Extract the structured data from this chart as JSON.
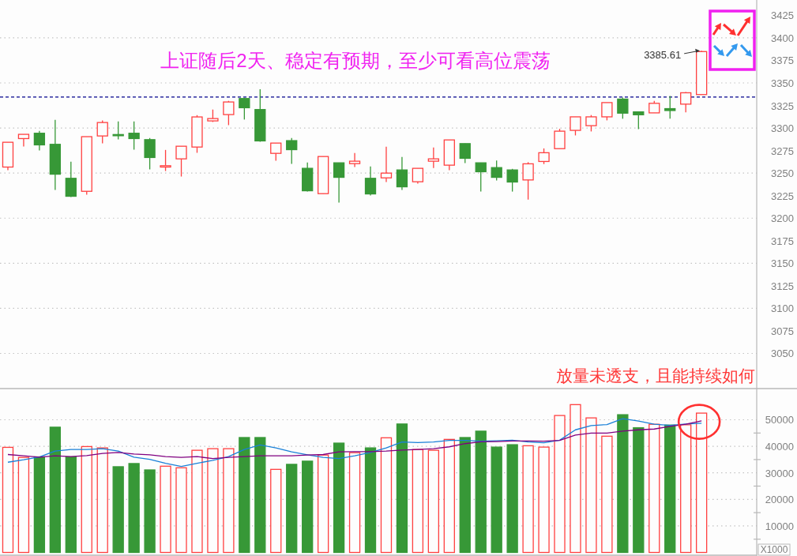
{
  "chart_data": [
    {
      "type": "candlestick",
      "title": "上证随后2天、稳定有预期，至少可看高位震荡",
      "categories": [
        null,
        null,
        null,
        null,
        null,
        null,
        null,
        null,
        null,
        null,
        null,
        null,
        null,
        null,
        null,
        null,
        null,
        null,
        null,
        null,
        null,
        null,
        null,
        null,
        null,
        null,
        null,
        null,
        null,
        null,
        null,
        null,
        null,
        null,
        null,
        null,
        null,
        null,
        null,
        null,
        null,
        null,
        null,
        null,
        null,
        null,
        null,
        null
      ],
      "ohlc": [
        [
          3256.7,
          3284.2,
          3253.2,
          3284.2
        ],
        [
          3288.3,
          3293.0,
          3279.5,
          3293.0
        ],
        [
          3294.2,
          3296.8,
          3275.1,
          3281.3
        ],
        [
          3281.9,
          3309.1,
          3231.3,
          3248.8
        ],
        [
          3244.2,
          3262.6,
          3223.4,
          3224.3
        ],
        [
          3229.8,
          3290.4,
          3226.0,
          3290.4
        ],
        [
          3291.2,
          3308.5,
          3283.0,
          3306.1
        ],
        [
          3292.1,
          3307.3,
          3287.4,
          3292.1
        ],
        [
          3294.2,
          3307.3,
          3276.0,
          3288.3
        ],
        [
          3287.1,
          3288.9,
          3254.1,
          3267.3
        ],
        [
          3256.7,
          3275.7,
          3252.3,
          3258.2
        ],
        [
          3265.8,
          3279.8,
          3246.2,
          3279.8
        ],
        [
          3278.9,
          3314.3,
          3272.5,
          3312.3
        ],
        [
          3307.9,
          3320.5,
          3306.7,
          3310.5
        ],
        [
          3314.9,
          3330.1,
          3303.2,
          3328.9
        ],
        [
          3332.7,
          3333.6,
          3309.4,
          3322.5
        ],
        [
          3320.5,
          3343.0,
          3284.8,
          3285.7
        ],
        [
          3271.9,
          3283.3,
          3263.7,
          3283.3
        ],
        [
          3286.0,
          3288.9,
          3260.2,
          3276.0
        ],
        [
          3255.3,
          3261.7,
          3229.5,
          3230.4
        ],
        [
          3227.2,
          3268.4,
          3227.2,
          3268.4
        ],
        [
          3261.4,
          3261.4,
          3217.3,
          3245.3
        ],
        [
          3260.5,
          3272.2,
          3256.7,
          3263.2
        ],
        [
          3244.2,
          3257.3,
          3225.1,
          3226.9
        ],
        [
          3244.7,
          3279.2,
          3240.1,
          3250.0
        ],
        [
          3253.5,
          3267.8,
          3231.3,
          3234.8
        ],
        [
          3240.4,
          3255.3,
          3238.3,
          3255.3
        ],
        [
          3263.2,
          3278.4,
          3255.6,
          3265.8
        ],
        [
          3258.8,
          3286.8,
          3253.2,
          3286.8
        ],
        [
          3282.7,
          3282.7,
          3261.1,
          3266.4
        ],
        [
          3261.4,
          3261.4,
          3229.5,
          3251.5
        ],
        [
          3256.1,
          3264.0,
          3241.8,
          3245.3
        ],
        [
          3253.5,
          3254.7,
          3229.5,
          3240.1
        ],
        [
          3242.4,
          3262.1,
          3220.6,
          3260.3
        ],
        [
          3262.9,
          3277.4,
          3260.0,
          3272.6
        ],
        [
          3277.1,
          3299.1,
          3277.1,
          3296.5
        ],
        [
          3297.4,
          3312.4,
          3291.8,
          3312.4
        ],
        [
          3302.6,
          3314.4,
          3296.2,
          3312.4
        ],
        [
          3312.4,
          3328.2,
          3308.5,
          3328.2
        ],
        [
          3332.1,
          3333.8,
          3310.3,
          3316.5
        ],
        [
          3317.9,
          3317.9,
          3298.8,
          3314.7
        ],
        [
          3316.8,
          3330.0,
          3316.8,
          3327.4
        ],
        [
          3321.5,
          3335.6,
          3310.3,
          3319.4
        ],
        [
          3326.5,
          3340.0,
          3317.4,
          3339.1
        ],
        [
          3337.1,
          3385.61,
          3337.1,
          3384.8
        ],
        null,
        null,
        null
      ],
      "colors": [
        "#ff4040",
        "#ff4040",
        "#379837",
        "#379837",
        "#379837",
        "#ff4040",
        "#ff4040",
        "#379837",
        "#379837",
        "#379837",
        "#ff4040",
        "#ff4040",
        "#ff4040",
        "#ff4040",
        "#ff4040",
        "#379837",
        "#379837",
        "#ff4040",
        "#379837",
        "#379837",
        "#ff4040",
        "#379837",
        "#ff4040",
        "#379837",
        "#ff4040",
        "#379837",
        "#ff4040",
        "#ff4040",
        "#ff4040",
        "#379837",
        "#379837",
        "#379837",
        "#379837",
        "#ff4040",
        "#ff4040",
        "#ff4040",
        "#ff4040",
        "#ff4040",
        "#ff4040",
        "#379837",
        "#379837",
        "#ff4040",
        "#379837",
        "#ff4040",
        "#ff4040",
        null,
        null,
        null
      ],
      "ylim": [
        3011,
        3442
      ],
      "yticks": [
        3050,
        3075,
        3100,
        3125,
        3150,
        3175,
        3200,
        3225,
        3250,
        3275,
        3300,
        3325,
        3350,
        3375,
        3400,
        3425
      ],
      "grid": "y",
      "ref_lines": [
        {
          "axis": "y",
          "value": 3334.4,
          "color": "#00008b",
          "line_style": "dashed"
        }
      ],
      "annotations": [
        "3385.61"
      ]
    },
    {
      "type": "bar",
      "title": "放量未透支，且能持续如何",
      "categories": [
        null,
        null,
        null,
        null,
        null,
        null,
        null,
        null,
        null,
        null,
        null,
        null,
        null,
        null,
        null,
        null,
        null,
        null,
        null,
        null,
        null,
        null,
        null,
        null,
        null,
        null,
        null,
        null,
        null,
        null,
        null,
        null,
        null,
        null,
        null,
        null,
        null,
        null,
        null,
        null,
        null,
        null,
        null,
        null,
        null,
        null,
        null,
        null
      ],
      "series": [
        {
          "colors": [
            "#ff4040",
            "#ff4040",
            "#379837",
            "#379837",
            "#379837",
            "#ff4040",
            "#ff4040",
            "#379837",
            "#379837",
            "#379837",
            "#ff4040",
            "#ff4040",
            "#ff4040",
            "#ff4040",
            "#ff4040",
            "#379837",
            "#379837",
            "#ff4040",
            "#379837",
            "#379837",
            "#ff4040",
            "#379837",
            "#ff4040",
            "#379837",
            "#ff4040",
            "#379837",
            "#ff4040",
            "#ff4040",
            "#ff4040",
            "#379837",
            "#379837",
            "#379837",
            "#379837",
            "#ff4040",
            "#ff4040",
            "#ff4040",
            "#ff4040",
            "#ff4040",
            "#ff4040",
            "#379837",
            "#379837",
            "#ff4040",
            "#379837",
            "#ff4040",
            "#ff4040",
            null,
            null,
            null
          ],
          "values": [
            39600,
            35800,
            36000,
            47200,
            36000,
            39900,
            39400,
            32300,
            33500,
            31100,
            32500,
            31900,
            38500,
            39100,
            39100,
            43300,
            43300,
            31300,
            33200,
            34400,
            36700,
            41200,
            37600,
            39400,
            43200,
            48400,
            38800,
            38500,
            42600,
            43300,
            45700,
            39700,
            40600,
            40200,
            39700,
            51600,
            55700,
            50700,
            43800,
            51900,
            47000,
            48300,
            48000,
            48100,
            52500,
            null,
            null,
            null
          ]
        },
        {
          "type": "line",
          "color": "#1a80d8",
          "values": [
            34000,
            34900,
            36000,
            38200,
            38800,
            38800,
            39100,
            38200,
            35900,
            35100,
            33600,
            32400,
            33600,
            34700,
            36100,
            38800,
            40500,
            39400,
            37900,
            36800,
            35800,
            35400,
            36400,
            37700,
            39400,
            41600,
            41400,
            41600,
            42200,
            42200,
            41900,
            42100,
            42300,
            41600,
            41300,
            42300,
            46200,
            47800,
            48200,
            50400,
            49500,
            48300,
            47900,
            48400,
            48700,
            null,
            null,
            null
          ]
        },
        {
          "type": "line",
          "color": "#800080",
          "values": [
            36900,
            36400,
            35900,
            36400,
            36100,
            36500,
            37300,
            37700,
            37100,
            36800,
            36100,
            35800,
            36100,
            35400,
            35800,
            36100,
            36400,
            36400,
            36400,
            36700,
            36900,
            37900,
            38000,
            38000,
            38200,
            38600,
            38800,
            39100,
            39800,
            41000,
            41700,
            41800,
            42000,
            42000,
            41900,
            42200,
            44200,
            45000,
            45000,
            45700,
            46200,
            46500,
            47500,
            48300,
            49600,
            null,
            null,
            null
          ]
        }
      ],
      "ylim": [
        0,
        61750
      ],
      "yticks": [
        {
          "value": 5000,
          "label": null
        },
        10000,
        {
          "value": 15000,
          "label": null
        },
        20000,
        {
          "value": 25000,
          "label": null
        },
        30000,
        {
          "value": 35000,
          "label": null
        },
        40000,
        {
          "value": 45000,
          "label": null
        },
        50000
      ],
      "ylabel": "X1000",
      "grid": "y"
    }
  ]
}
